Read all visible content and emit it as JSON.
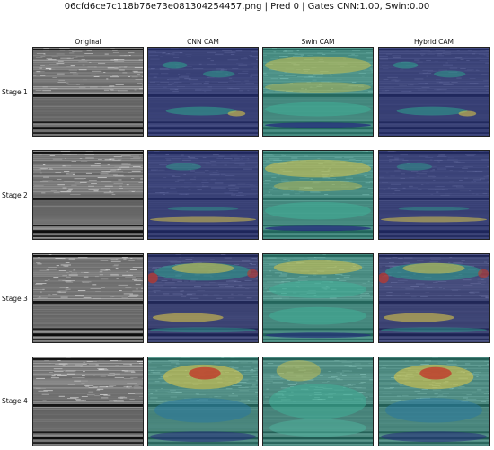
{
  "header": {
    "title": "06cfd6ce7c118b76e73e081304254457.png  |  Pred 0  | Gates CNN:1.00, Swin:0.00"
  },
  "columns": [
    "Original",
    "CNN CAM",
    "Swin CAM",
    "Hybrid CAM"
  ],
  "rows": [
    "Stage 1",
    "Stage 2",
    "Stage 3",
    "Stage 4"
  ],
  "colors": {
    "gray_base": "#7a7a7a",
    "dark_blue": "#26307a",
    "teal": "#2f9c8c",
    "yellow": "#d8c54a",
    "red": "#c0392b"
  }
}
